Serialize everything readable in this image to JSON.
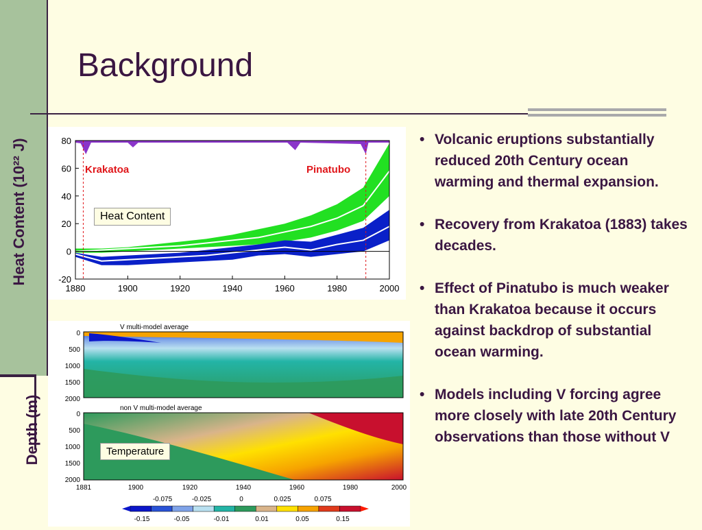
{
  "slide": {
    "title": "Background",
    "y_label_top": "Heat Content (10²² J)",
    "y_label_bottom": "Depth (m)"
  },
  "heat_chart": {
    "label_box": "Heat Content",
    "krakatoa_label": "Krakatoa",
    "pinatubo_label": "Pinatubo",
    "y_ticks": [
      "80",
      "60",
      "40",
      "20",
      "0",
      "-20"
    ],
    "x_ticks": [
      "1880",
      "1900",
      "1920",
      "1940",
      "1960",
      "1980",
      "2000"
    ]
  },
  "depth_chart": {
    "title_v": "V multi-model average",
    "title_nonv": "non V multi-model average",
    "label_box": "Temperature",
    "depth_ticks": [
      "0",
      "500",
      "1000",
      "1500",
      "2000"
    ],
    "x_ticks": [
      "1881",
      "1900",
      "1920",
      "1940",
      "1960",
      "1980",
      "2000"
    ],
    "colorbar_top": [
      "-0.075",
      "-0.025",
      "0",
      "0.025",
      "0.075"
    ],
    "colorbar_bottom": [
      "-0.15",
      "-0.05",
      "-0.01",
      "0.01",
      "0.05",
      "0.15"
    ],
    "colorbar_colors": [
      "#0b16c9",
      "#2952d6",
      "#7fa3e8",
      "#b9e0f0",
      "#23b4a6",
      "#2d9a5c",
      "#d9b48a",
      "#ffe000",
      "#f6a300",
      "#e03a1c",
      "#c8102e"
    ]
  },
  "chart_data": {
    "type": "area",
    "title": "",
    "x": [
      1880,
      1890,
      1900,
      1910,
      1920,
      1930,
      1940,
      1950,
      1960,
      1970,
      1980,
      1990,
      2000
    ],
    "xlim": [
      1880,
      2000
    ],
    "ylim": [
      -20,
      80
    ],
    "xlabel": "",
    "ylabel": "Heat Content (10²² J)",
    "series": [
      {
        "name": "",
        "color": "#22e022",
        "upper": [
          2,
          2,
          3,
          5,
          7,
          9,
          12,
          16,
          20,
          26,
          34,
          46,
          78
        ],
        "lower": [
          -1,
          -1,
          0,
          1,
          2,
          3,
          4,
          5,
          7,
          10,
          15,
          22,
          40
        ],
        "mean": [
          0,
          1,
          2,
          3,
          4,
          6,
          8,
          10,
          14,
          18,
          24,
          33,
          58
        ]
      },
      {
        "name": "",
        "color": "#0a20c8",
        "upper": [
          -1,
          -4,
          -3,
          -2,
          -1,
          1,
          3,
          5,
          8,
          7,
          12,
          17,
          30
        ],
        "lower": [
          -4,
          -10,
          -10,
          -9,
          -8,
          -7,
          -6,
          -3,
          -2,
          -4,
          -2,
          0,
          8
        ],
        "mean": [
          -2,
          -7,
          -6,
          -5,
          -4,
          -3,
          -1,
          1,
          3,
          1,
          5,
          8,
          18
        ]
      }
    ]
  },
  "bullets": [
    "Volcanic eruptions substantially reduced 20th Century ocean warming and thermal expansion.",
    "Recovery from Krakatoa (1883)   takes decades.",
    " Effect of Pinatubo is much weaker than Krakatoa because it occurs against backdrop of substantial ocean warming.",
    "Models including V forcing agree more closely with late 20th Century observations than those without V"
  ]
}
